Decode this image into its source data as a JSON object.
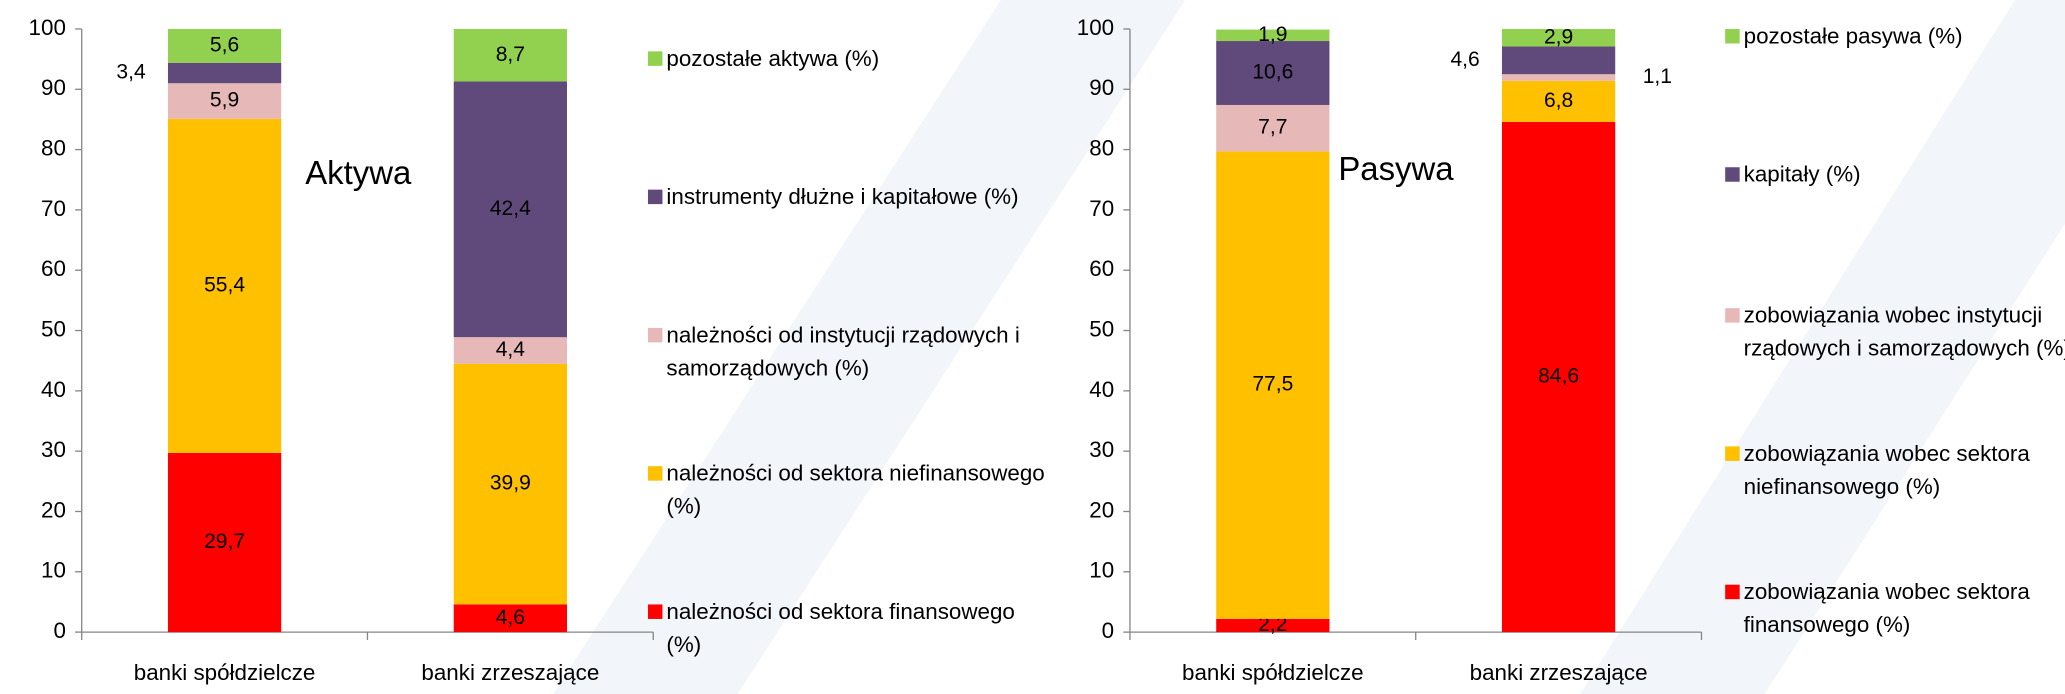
{
  "chart_data": [
    {
      "type": "stacked_bar",
      "annotation": "Aktywa",
      "categories": [
        "banki spółdzielcze",
        "banki zrzeszające"
      ],
      "ylim": [
        0,
        100
      ],
      "yticks": [
        0,
        10,
        20,
        30,
        40,
        50,
        60,
        70,
        80,
        90,
        100
      ],
      "grid": false,
      "series": [
        {
          "name": "należności od sektora finansowego (%)",
          "color": "#ff0000",
          "values": [
            29.7,
            4.6
          ],
          "value_labels": [
            "29,7",
            "4,6"
          ]
        },
        {
          "name": "należności od sektora niefinansowego (%)",
          "color": "#ffc000",
          "values": [
            55.4,
            39.9
          ],
          "value_labels": [
            "55,4",
            "39,9"
          ]
        },
        {
          "name": "należności od instytucji rządowych i samorządowych (%)",
          "color": "#e6b9b8",
          "values": [
            5.9,
            4.4
          ],
          "value_labels": [
            "5,9",
            "4,4"
          ]
        },
        {
          "name": "instrumenty dłużne i kapitałowe (%)",
          "color": "#604a7b",
          "values": [
            3.4,
            42.4
          ],
          "value_labels": [
            "3,4",
            "42,4"
          ]
        },
        {
          "name": "pozostałe aktywa (%)",
          "color": "#92d050",
          "values": [
            5.6,
            8.7
          ],
          "value_labels": [
            "5,6",
            "8,7"
          ]
        }
      ]
    },
    {
      "type": "stacked_bar",
      "annotation": "Pasywa",
      "categories": [
        "banki spółdzielcze",
        "banki zrzeszające"
      ],
      "ylim": [
        0,
        100
      ],
      "yticks": [
        0,
        10,
        20,
        30,
        40,
        50,
        60,
        70,
        80,
        90,
        100
      ],
      "grid": false,
      "series": [
        {
          "name": "zobowiązania wobec sektora finansowego (%)",
          "color": "#ff0000",
          "values": [
            2.2,
            84.6
          ],
          "value_labels": [
            "2,2",
            "84,6"
          ]
        },
        {
          "name": "zobowiązania wobec sektora niefinansowego (%)",
          "color": "#ffc000",
          "values": [
            77.5,
            6.8
          ],
          "value_labels": [
            "77,5",
            "6,8"
          ]
        },
        {
          "name": "zobowiązania wobec instytucji rządowych i samorządowych (%)",
          "color": "#e6b9b8",
          "values": [
            7.7,
            1.1
          ],
          "value_labels": [
            "7,7",
            "1,1"
          ]
        },
        {
          "name": "kapitały (%)",
          "color": "#604a7b",
          "values": [
            10.6,
            4.6
          ],
          "value_labels": [
            "10,6",
            "4,6"
          ]
        },
        {
          "name": "pozostałe pasywa (%)",
          "color": "#92d050",
          "values": [
            1.9,
            2.9
          ],
          "value_labels": [
            "1,9",
            "2,9"
          ]
        }
      ]
    }
  ]
}
